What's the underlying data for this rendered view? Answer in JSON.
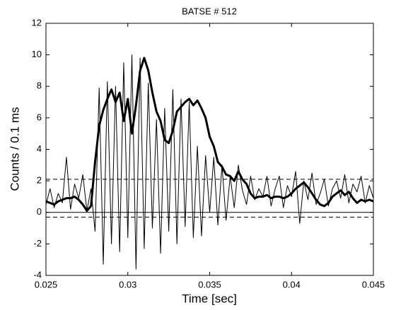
{
  "chart_data": {
    "type": "line",
    "title": "BATSE # 512",
    "xlabel": "Time  [sec]",
    "ylabel": "Counts / 0.1 ms",
    "x": [
      0.025,
      0.02525,
      0.0255,
      0.02575,
      0.026,
      0.02625,
      0.0265,
      0.02675,
      0.027,
      0.02725,
      0.0275,
      0.02775,
      0.028,
      0.02825,
      0.0285,
      0.02875,
      0.029,
      0.02925,
      0.0295,
      0.02975,
      0.03,
      0.03025,
      0.0305,
      0.03075,
      0.031,
      0.03125,
      0.0315,
      0.03175,
      0.032,
      0.03225,
      0.0325,
      0.03275,
      0.033,
      0.03325,
      0.0335,
      0.03375,
      0.034,
      0.03425,
      0.0345,
      0.03475,
      0.035,
      0.03525,
      0.0355,
      0.03575,
      0.036,
      0.03625,
      0.0365,
      0.03675,
      0.037,
      0.03725,
      0.0375,
      0.03775,
      0.038,
      0.03825,
      0.0385,
      0.03875,
      0.039,
      0.03925,
      0.0395,
      0.03975,
      0.04,
      0.04025,
      0.0405,
      0.04075,
      0.041,
      0.04125,
      0.0415,
      0.04175,
      0.042,
      0.04225,
      0.0425,
      0.04275,
      0.043,
      0.04325,
      0.0435,
      0.04375,
      0.044,
      0.04425,
      0.0445,
      0.04475,
      0.045
    ],
    "series": [
      {
        "color": "#000000",
        "width": 1,
        "values": [
          0.5,
          1.5,
          0.3,
          1.2,
          0.6,
          3.5,
          0.2,
          1.8,
          0.9,
          2.4,
          0.1,
          1.5,
          -1.2,
          7.9,
          -3.3,
          8.3,
          -2.0,
          8.0,
          -2.5,
          9.5,
          -1.6,
          10.0,
          -3.6,
          9.8,
          -2.3,
          8.2,
          -1.0,
          5.9,
          -2.6,
          6.6,
          -1.2,
          7.8,
          -2.0,
          7.2,
          -0.9,
          7.0,
          -1.6,
          4.2,
          -1.5,
          3.6,
          0.0,
          3.5,
          -0.8,
          3.0,
          -0.5,
          2.3,
          0.3,
          3.0,
          1.4,
          0.5,
          2.3,
          0.8,
          1.5,
          1.0,
          2.3,
          0.4,
          1.5,
          2.3,
          0.3,
          1.7,
          1.0,
          2.6,
          -0.7,
          2.0,
          0.8,
          2.5,
          0.5,
          1.2,
          2.1,
          0.4,
          1.5,
          2.0,
          0.9,
          2.4,
          0.6,
          1.8,
          1.3,
          2.3,
          0.6,
          1.7,
          0.9
        ]
      },
      {
        "color": "#000000",
        "width": 3,
        "values": [
          0.7,
          0.6,
          0.5,
          0.7,
          0.8,
          0.9,
          0.9,
          1.0,
          0.8,
          0.5,
          0.1,
          0.4,
          3.2,
          5.5,
          6.5,
          7.2,
          7.8,
          7.0,
          7.6,
          5.8,
          7.2,
          5.0,
          6.8,
          9.0,
          9.8,
          9.0,
          7.6,
          6.4,
          5.8,
          4.6,
          4.4,
          5.2,
          6.4,
          6.7,
          7.0,
          7.2,
          6.8,
          7.1,
          6.6,
          6.0,
          4.8,
          4.2,
          3.2,
          2.9,
          2.4,
          2.3,
          2.0,
          2.6,
          2.1,
          1.8,
          1.2,
          0.9,
          1.0,
          1.0,
          1.1,
          0.9,
          1.0,
          1.0,
          0.9,
          1.0,
          1.2,
          1.5,
          1.7,
          1.9,
          1.6,
          1.2,
          0.8,
          0.5,
          0.4,
          0.6,
          1.0,
          1.2,
          1.4,
          1.1,
          1.3,
          0.9,
          0.6,
          0.8,
          0.7,
          0.8,
          0.7
        ]
      }
    ],
    "hlines": [
      {
        "value": 0,
        "style": "solid"
      },
      {
        "value": 2.1,
        "style": "dashed"
      },
      {
        "value": -0.3,
        "style": "dashed"
      }
    ],
    "xlim": [
      0.025,
      0.045
    ],
    "xticks": [
      0.025,
      0.03,
      0.035,
      0.04,
      0.045
    ],
    "ylim": [
      -4,
      12
    ],
    "yticks": [
      -4,
      -2,
      0,
      2,
      4,
      6,
      8,
      10,
      12
    ]
  }
}
